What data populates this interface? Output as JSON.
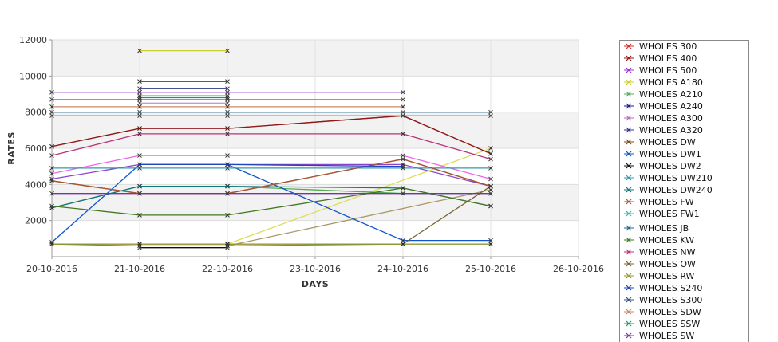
{
  "chart_data": {
    "type": "line",
    "title": "",
    "xlabel": "DAYS",
    "ylabel": "RATES",
    "x_ticks": [
      "20-10-2016",
      "21-10-2016",
      "22-10-2016",
      "23-10-2016",
      "24-10-2016",
      "25-10-2016",
      "26-10-2016"
    ],
    "xlim": [
      "20-10-2016",
      "26-10-2016"
    ],
    "ylim": [
      0,
      12000
    ],
    "y_ticks": [
      2000,
      4000,
      6000,
      8000,
      10000,
      12000
    ],
    "grid": true,
    "legend_position": "right",
    "series": [
      {
        "name": "WHOLES 300",
        "color": "#cc3333",
        "points": [
          [
            "20-10-2016",
            6100
          ],
          [
            "21-10-2016",
            7100
          ],
          [
            "22-10-2016",
            7100
          ],
          [
            "24-10-2016",
            7800
          ],
          [
            "25-10-2016",
            5700
          ]
        ]
      },
      {
        "name": "WHOLES 400",
        "color": "#8b1a1a",
        "points": [
          [
            "20-10-2016",
            6100
          ],
          [
            "21-10-2016",
            7100
          ],
          [
            "22-10-2016",
            7100
          ],
          [
            "24-10-2016",
            7800
          ],
          [
            "25-10-2016",
            5700
          ]
        ]
      },
      {
        "name": "WHOLES 500",
        "color": "#9933cc",
        "points": [
          [
            "20-10-2016",
            9100
          ],
          [
            "21-10-2016",
            9100
          ],
          [
            "22-10-2016",
            9100
          ],
          [
            "24-10-2016",
            9100
          ]
        ]
      },
      {
        "name": "WHOLES A180",
        "color": "#cccc33",
        "points": [
          [
            "21-10-2016",
            11400
          ],
          [
            "22-10-2016",
            11400
          ]
        ]
      },
      {
        "name": "WHOLES A210",
        "color": "#55aa55",
        "points": [
          [
            "20-10-2016",
            2700
          ],
          [
            "21-10-2016",
            3900
          ],
          [
            "22-10-2016",
            3900
          ],
          [
            "24-10-2016",
            3500
          ],
          [
            "25-10-2016",
            3500
          ]
        ]
      },
      {
        "name": "WHOLES A240",
        "color": "#1a1a8b",
        "points": [
          [
            "21-10-2016",
            9700
          ],
          [
            "22-10-2016",
            9700
          ]
        ]
      },
      {
        "name": "WHOLES A300",
        "color": "#bb66bb",
        "points": [
          [
            "20-10-2016",
            8700
          ],
          [
            "21-10-2016",
            8700
          ],
          [
            "22-10-2016",
            8700
          ],
          [
            "24-10-2016",
            8700
          ]
        ]
      },
      {
        "name": "WHOLES A320",
        "color": "#333388",
        "points": [
          [
            "21-10-2016",
            9300
          ],
          [
            "22-10-2016",
            9300
          ]
        ]
      },
      {
        "name": "WHOLES DW",
        "color": "#7a4a1a",
        "points": [
          [
            "20-10-2016",
            4200
          ],
          [
            "21-10-2016",
            3500
          ],
          [
            "22-10-2016",
            3500
          ],
          [
            "24-10-2016",
            5400
          ],
          [
            "25-10-2016",
            3900
          ]
        ]
      },
      {
        "name": "WHOLES DW1",
        "color": "#1155cc",
        "points": [
          [
            "20-10-2016",
            800
          ],
          [
            "21-10-2016",
            5100
          ],
          [
            "22-10-2016",
            5100
          ],
          [
            "24-10-2016",
            900
          ],
          [
            "25-10-2016",
            900
          ]
        ]
      },
      {
        "name": "WHOLES DW2",
        "color": "#111111",
        "points": [
          [
            "21-10-2016",
            500
          ],
          [
            "22-10-2016",
            500
          ]
        ]
      },
      {
        "name": "WHOLES DW210",
        "color": "#3399aa",
        "points": [
          [
            "20-10-2016",
            4900
          ],
          [
            "21-10-2016",
            4900
          ],
          [
            "22-10-2016",
            4900
          ],
          [
            "24-10-2016",
            4900
          ],
          [
            "25-10-2016",
            4900
          ]
        ]
      },
      {
        "name": "WHOLES DW240",
        "color": "#11777a",
        "points": [
          [
            "20-10-2016",
            2700
          ],
          [
            "21-10-2016",
            3900
          ],
          [
            "22-10-2016",
            3900
          ],
          [
            "24-10-2016",
            3800
          ],
          [
            "25-10-2016",
            2800
          ]
        ]
      },
      {
        "name": "WHOLES FW",
        "color": "#aa5533",
        "points": [
          [
            "20-10-2016",
            4200
          ],
          [
            "21-10-2016",
            3500
          ],
          [
            "22-10-2016",
            3500
          ],
          [
            "24-10-2016",
            5400
          ],
          [
            "25-10-2016",
            3900
          ]
        ]
      },
      {
        "name": "WHOLES FW1",
        "color": "#22bbbb",
        "points": [
          [
            "20-10-2016",
            7800
          ],
          [
            "21-10-2016",
            7800
          ],
          [
            "22-10-2016",
            7800
          ],
          [
            "24-10-2016",
            7800
          ],
          [
            "25-10-2016",
            7800
          ]
        ]
      },
      {
        "name": "WHOLES JB",
        "color": "#226688",
        "points": [
          [
            "20-10-2016",
            8000
          ],
          [
            "21-10-2016",
            8000
          ],
          [
            "22-10-2016",
            8000
          ],
          [
            "24-10-2016",
            8000
          ],
          [
            "25-10-2016",
            8000
          ]
        ]
      },
      {
        "name": "WHOLES KW",
        "color": "#447722",
        "points": [
          [
            "20-10-2016",
            2800
          ],
          [
            "21-10-2016",
            2300
          ],
          [
            "22-10-2016",
            2300
          ],
          [
            "24-10-2016",
            3800
          ],
          [
            "25-10-2016",
            2800
          ]
        ]
      },
      {
        "name": "WHOLES NW",
        "color": "#bb3377",
        "points": [
          [
            "20-10-2016",
            5600
          ],
          [
            "21-10-2016",
            6800
          ],
          [
            "22-10-2016",
            6800
          ],
          [
            "24-10-2016",
            6800
          ],
          [
            "25-10-2016",
            5400
          ]
        ]
      },
      {
        "name": "WHOLES OW",
        "color": "#776633",
        "points": [
          [
            "20-10-2016",
            700
          ],
          [
            "21-10-2016",
            700
          ],
          [
            "22-10-2016",
            700
          ],
          [
            "24-10-2016",
            700
          ],
          [
            "25-10-2016",
            3900
          ]
        ]
      },
      {
        "name": "WHOLES RW",
        "color": "#999922",
        "points": [
          [
            "20-10-2016",
            700
          ],
          [
            "21-10-2016",
            700
          ],
          [
            "22-10-2016",
            700
          ],
          [
            "24-10-2016",
            700
          ],
          [
            "25-10-2016",
            700
          ]
        ]
      },
      {
        "name": "WHOLES S240",
        "color": "#2244bb",
        "points": [
          [
            "21-10-2016",
            5100
          ],
          [
            "22-10-2016",
            5100
          ],
          [
            "24-10-2016",
            5000
          ]
        ]
      },
      {
        "name": "WHOLES S300",
        "color": "#335577",
        "points": [
          [
            "21-10-2016",
            8900
          ],
          [
            "22-10-2016",
            8900
          ]
        ]
      },
      {
        "name": "WHOLES SDW",
        "color": "#cc8866",
        "points": [
          [
            "20-10-2016",
            8300
          ],
          [
            "21-10-2016",
            8300
          ],
          [
            "22-10-2016",
            8300
          ],
          [
            "24-10-2016",
            8300
          ]
        ]
      },
      {
        "name": "WHOLES SSW",
        "color": "#119966",
        "points": [
          [
            "21-10-2016",
            8800
          ],
          [
            "22-10-2016",
            8800
          ]
        ]
      },
      {
        "name": "WHOLES SW",
        "color": "#7733aa",
        "points": [
          [
            "20-10-2016",
            3500
          ],
          [
            "21-10-2016",
            3500
          ],
          [
            "22-10-2016",
            3500
          ],
          [
            "24-10-2016",
            3500
          ],
          [
            "25-10-2016",
            3500
          ]
        ]
      }
    ],
    "extra_lines": [
      {
        "color": "#dddd55",
        "points": [
          [
            "22-10-2016",
            700
          ],
          [
            "25-10-2016",
            6000
          ]
        ]
      },
      {
        "color": "#aa9966",
        "points": [
          [
            "22-10-2016",
            600
          ],
          [
            "25-10-2016",
            3700
          ]
        ]
      },
      {
        "color": "#ee66ee",
        "points": [
          [
            "20-10-2016",
            4600
          ],
          [
            "21-10-2016",
            5600
          ],
          [
            "22-10-2016",
            5600
          ],
          [
            "24-10-2016",
            5600
          ],
          [
            "25-10-2016",
            4300
          ]
        ]
      },
      {
        "color": "#8844cc",
        "points": [
          [
            "20-10-2016",
            4300
          ],
          [
            "21-10-2016",
            5100
          ],
          [
            "22-10-2016",
            5100
          ],
          [
            "24-10-2016",
            5100
          ],
          [
            "25-10-2016",
            3900
          ]
        ]
      },
      {
        "color": "#22aaaa",
        "points": [
          [
            "20-10-2016",
            700
          ],
          [
            "21-10-2016",
            600
          ],
          [
            "22-10-2016",
            600
          ],
          [
            "24-10-2016",
            700
          ],
          [
            "25-10-2016",
            700
          ]
        ]
      },
      {
        "color": "#cc99cc",
        "points": [
          [
            "21-10-2016",
            8500
          ],
          [
            "22-10-2016",
            8500
          ]
        ]
      }
    ]
  }
}
